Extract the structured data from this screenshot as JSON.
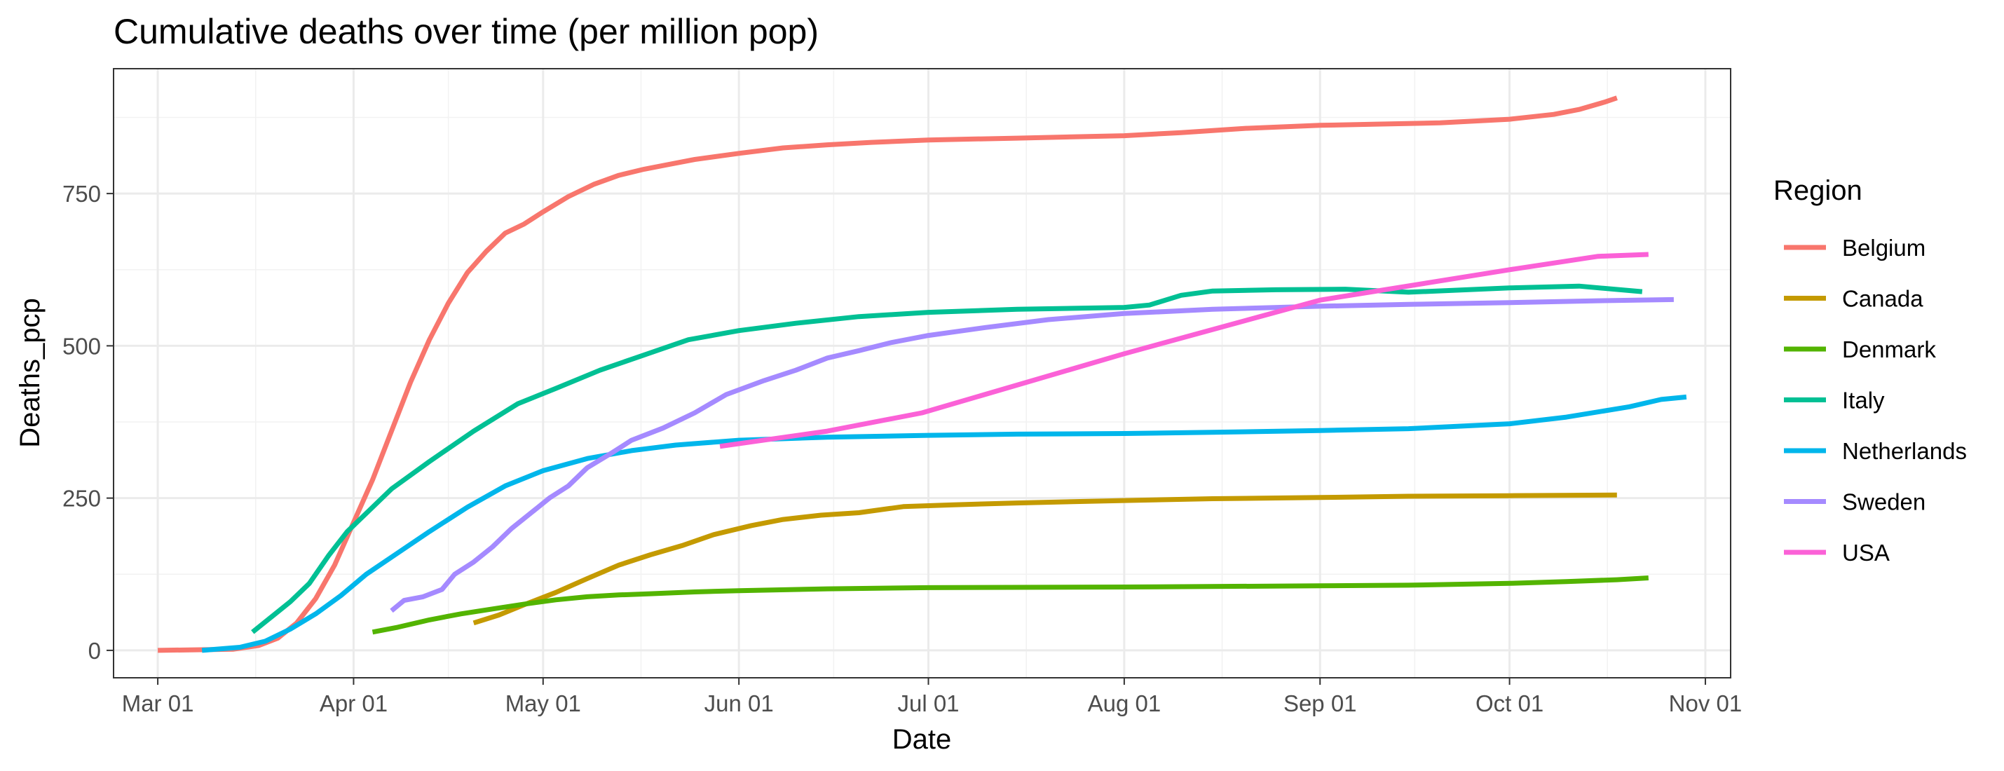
{
  "chart_data": {
    "type": "line",
    "title": "Cumulative deaths over time  (per million pop)",
    "xlabel": "Date",
    "ylabel": "Deaths_pcp",
    "x_ticks": [
      "Mar 01",
      "Apr 01",
      "May 01",
      "Jun 01",
      "Jul 01",
      "Aug 01",
      "Sep 01",
      "Oct 01",
      "Nov 01"
    ],
    "x_tick_dates": [
      "2020-03-01",
      "2020-04-01",
      "2020-05-01",
      "2020-06-01",
      "2020-07-01",
      "2020-08-01",
      "2020-09-01",
      "2020-10-01",
      "2020-11-01"
    ],
    "y_ticks": [
      0,
      250,
      500,
      750
    ],
    "xlim": [
      "2020-02-23",
      "2020-11-05"
    ],
    "ylim": [
      -45,
      955
    ],
    "grid": true,
    "legend": {
      "title": "Region",
      "position": "right"
    },
    "series": [
      {
        "name": "Belgium",
        "color": "#F8766D",
        "points": [
          [
            "2020-03-01",
            0
          ],
          [
            "2020-03-13",
            2
          ],
          [
            "2020-03-17",
            8
          ],
          [
            "2020-03-20",
            20
          ],
          [
            "2020-03-23",
            45
          ],
          [
            "2020-03-26",
            85
          ],
          [
            "2020-03-29",
            140
          ],
          [
            "2020-04-01",
            210
          ],
          [
            "2020-04-04",
            280
          ],
          [
            "2020-04-07",
            360
          ],
          [
            "2020-04-10",
            440
          ],
          [
            "2020-04-13",
            510
          ],
          [
            "2020-04-16",
            570
          ],
          [
            "2020-04-19",
            620
          ],
          [
            "2020-04-22",
            655
          ],
          [
            "2020-04-25",
            685
          ],
          [
            "2020-04-28",
            700
          ],
          [
            "2020-05-01",
            720
          ],
          [
            "2020-05-05",
            745
          ],
          [
            "2020-05-09",
            765
          ],
          [
            "2020-05-13",
            780
          ],
          [
            "2020-05-17",
            790
          ],
          [
            "2020-05-21",
            798
          ],
          [
            "2020-05-25",
            806
          ],
          [
            "2020-06-01",
            816
          ],
          [
            "2020-06-08",
            825
          ],
          [
            "2020-06-15",
            830
          ],
          [
            "2020-06-22",
            834
          ],
          [
            "2020-07-01",
            838
          ],
          [
            "2020-07-15",
            841
          ],
          [
            "2020-08-01",
            845
          ],
          [
            "2020-08-10",
            850
          ],
          [
            "2020-08-20",
            857
          ],
          [
            "2020-09-01",
            862
          ],
          [
            "2020-09-10",
            864
          ],
          [
            "2020-09-20",
            866
          ],
          [
            "2020-10-01",
            872
          ],
          [
            "2020-10-08",
            880
          ],
          [
            "2020-10-12",
            888
          ],
          [
            "2020-10-16",
            900
          ],
          [
            "2020-10-18",
            907
          ]
        ]
      },
      {
        "name": "Canada",
        "color": "#C49A00",
        "points": [
          [
            "2020-04-20",
            45
          ],
          [
            "2020-04-24",
            58
          ],
          [
            "2020-04-28",
            75
          ],
          [
            "2020-05-03",
            95
          ],
          [
            "2020-05-08",
            118
          ],
          [
            "2020-05-13",
            140
          ],
          [
            "2020-05-18",
            157
          ],
          [
            "2020-05-23",
            172
          ],
          [
            "2020-05-28",
            190
          ],
          [
            "2020-06-03",
            205
          ],
          [
            "2020-06-08",
            215
          ],
          [
            "2020-06-14",
            222
          ],
          [
            "2020-06-20",
            226
          ],
          [
            "2020-06-27",
            236
          ],
          [
            "2020-07-05",
            239
          ],
          [
            "2020-07-15",
            242
          ],
          [
            "2020-08-01",
            246
          ],
          [
            "2020-08-15",
            249
          ],
          [
            "2020-09-01",
            251
          ],
          [
            "2020-09-15",
            253
          ],
          [
            "2020-10-01",
            254
          ],
          [
            "2020-10-18",
            255
          ]
        ]
      },
      {
        "name": "Denmark",
        "color": "#53B400",
        "points": [
          [
            "2020-04-04",
            30
          ],
          [
            "2020-04-08",
            38
          ],
          [
            "2020-04-13",
            50
          ],
          [
            "2020-04-18",
            60
          ],
          [
            "2020-04-23",
            68
          ],
          [
            "2020-04-28",
            76
          ],
          [
            "2020-05-03",
            83
          ],
          [
            "2020-05-08",
            88
          ],
          [
            "2020-05-13",
            91
          ],
          [
            "2020-05-18",
            93
          ],
          [
            "2020-05-25",
            96
          ],
          [
            "2020-06-01",
            98
          ],
          [
            "2020-06-15",
            101
          ],
          [
            "2020-07-01",
            103
          ],
          [
            "2020-08-01",
            104
          ],
          [
            "2020-09-01",
            106
          ],
          [
            "2020-09-15",
            107
          ],
          [
            "2020-10-01",
            110
          ],
          [
            "2020-10-10",
            113
          ],
          [
            "2020-10-18",
            116
          ],
          [
            "2020-10-23",
            119
          ]
        ]
      },
      {
        "name": "Italy",
        "color": "#00C094",
        "points": [
          [
            "2020-03-16",
            30
          ],
          [
            "2020-03-19",
            55
          ],
          [
            "2020-03-22",
            80
          ],
          [
            "2020-03-25",
            110
          ],
          [
            "2020-03-28",
            155
          ],
          [
            "2020-03-31",
            195
          ],
          [
            "2020-04-03",
            225
          ],
          [
            "2020-04-07",
            265
          ],
          [
            "2020-04-13",
            310
          ],
          [
            "2020-04-20",
            360
          ],
          [
            "2020-04-27",
            405
          ],
          [
            "2020-05-03",
            430
          ],
          [
            "2020-05-10",
            460
          ],
          [
            "2020-05-17",
            485
          ],
          [
            "2020-05-24",
            510
          ],
          [
            "2020-06-01",
            525
          ],
          [
            "2020-06-10",
            537
          ],
          [
            "2020-06-20",
            548
          ],
          [
            "2020-07-01",
            555
          ],
          [
            "2020-07-15",
            560
          ],
          [
            "2020-08-01",
            563
          ],
          [
            "2020-08-05",
            567
          ],
          [
            "2020-08-10",
            583
          ],
          [
            "2020-08-15",
            590
          ],
          [
            "2020-08-25",
            592
          ],
          [
            "2020-09-05",
            593
          ],
          [
            "2020-09-15",
            588
          ],
          [
            "2020-10-01",
            595
          ],
          [
            "2020-10-12",
            598
          ],
          [
            "2020-10-22",
            589
          ]
        ]
      },
      {
        "name": "Netherlands",
        "color": "#00B6EB",
        "points": [
          [
            "2020-03-08",
            0
          ],
          [
            "2020-03-14",
            5
          ],
          [
            "2020-03-18",
            15
          ],
          [
            "2020-03-22",
            35
          ],
          [
            "2020-03-26",
            60
          ],
          [
            "2020-03-30",
            90
          ],
          [
            "2020-04-03",
            125
          ],
          [
            "2020-04-08",
            160
          ],
          [
            "2020-04-13",
            195
          ],
          [
            "2020-04-19",
            235
          ],
          [
            "2020-04-25",
            270
          ],
          [
            "2020-05-01",
            295
          ],
          [
            "2020-05-08",
            315
          ],
          [
            "2020-05-15",
            328
          ],
          [
            "2020-05-22",
            337
          ],
          [
            "2020-06-01",
            345
          ],
          [
            "2020-06-15",
            350
          ],
          [
            "2020-07-01",
            353
          ],
          [
            "2020-07-15",
            355
          ],
          [
            "2020-08-01",
            356
          ],
          [
            "2020-08-15",
            358
          ],
          [
            "2020-09-01",
            361
          ],
          [
            "2020-09-15",
            364
          ],
          [
            "2020-10-01",
            372
          ],
          [
            "2020-10-10",
            383
          ],
          [
            "2020-10-20",
            400
          ],
          [
            "2020-10-25",
            412
          ],
          [
            "2020-10-29",
            416
          ]
        ]
      },
      {
        "name": "Sweden",
        "color": "#A58AFF",
        "points": [
          [
            "2020-04-07",
            65
          ],
          [
            "2020-04-09",
            82
          ],
          [
            "2020-04-12",
            88
          ],
          [
            "2020-04-15",
            100
          ],
          [
            "2020-04-17",
            125
          ],
          [
            "2020-04-20",
            145
          ],
          [
            "2020-04-23",
            170
          ],
          [
            "2020-04-26",
            200
          ],
          [
            "2020-04-29",
            225
          ],
          [
            "2020-05-02",
            250
          ],
          [
            "2020-05-05",
            270
          ],
          [
            "2020-05-08",
            300
          ],
          [
            "2020-05-12",
            325
          ],
          [
            "2020-05-15",
            345
          ],
          [
            "2020-05-20",
            365
          ],
          [
            "2020-05-25",
            390
          ],
          [
            "2020-05-30",
            420
          ],
          [
            "2020-06-05",
            443
          ],
          [
            "2020-06-10",
            460
          ],
          [
            "2020-06-15",
            480
          ],
          [
            "2020-06-20",
            492
          ],
          [
            "2020-06-25",
            505
          ],
          [
            "2020-07-01",
            517
          ],
          [
            "2020-07-10",
            530
          ],
          [
            "2020-07-20",
            543
          ],
          [
            "2020-08-01",
            553
          ],
          [
            "2020-08-15",
            560
          ],
          [
            "2020-09-01",
            565
          ],
          [
            "2020-09-15",
            568
          ],
          [
            "2020-10-01",
            571
          ],
          [
            "2020-10-15",
            574
          ],
          [
            "2020-10-27",
            576
          ]
        ]
      },
      {
        "name": "USA",
        "color": "#FB61D7",
        "points": [
          [
            "2020-05-29",
            335
          ],
          [
            "2020-06-15",
            360
          ],
          [
            "2020-06-30",
            390
          ],
          [
            "2020-08-01",
            487
          ],
          [
            "2020-09-01",
            575
          ],
          [
            "2020-10-01",
            625
          ],
          [
            "2020-10-15",
            647
          ],
          [
            "2020-10-23",
            650
          ]
        ]
      }
    ]
  }
}
